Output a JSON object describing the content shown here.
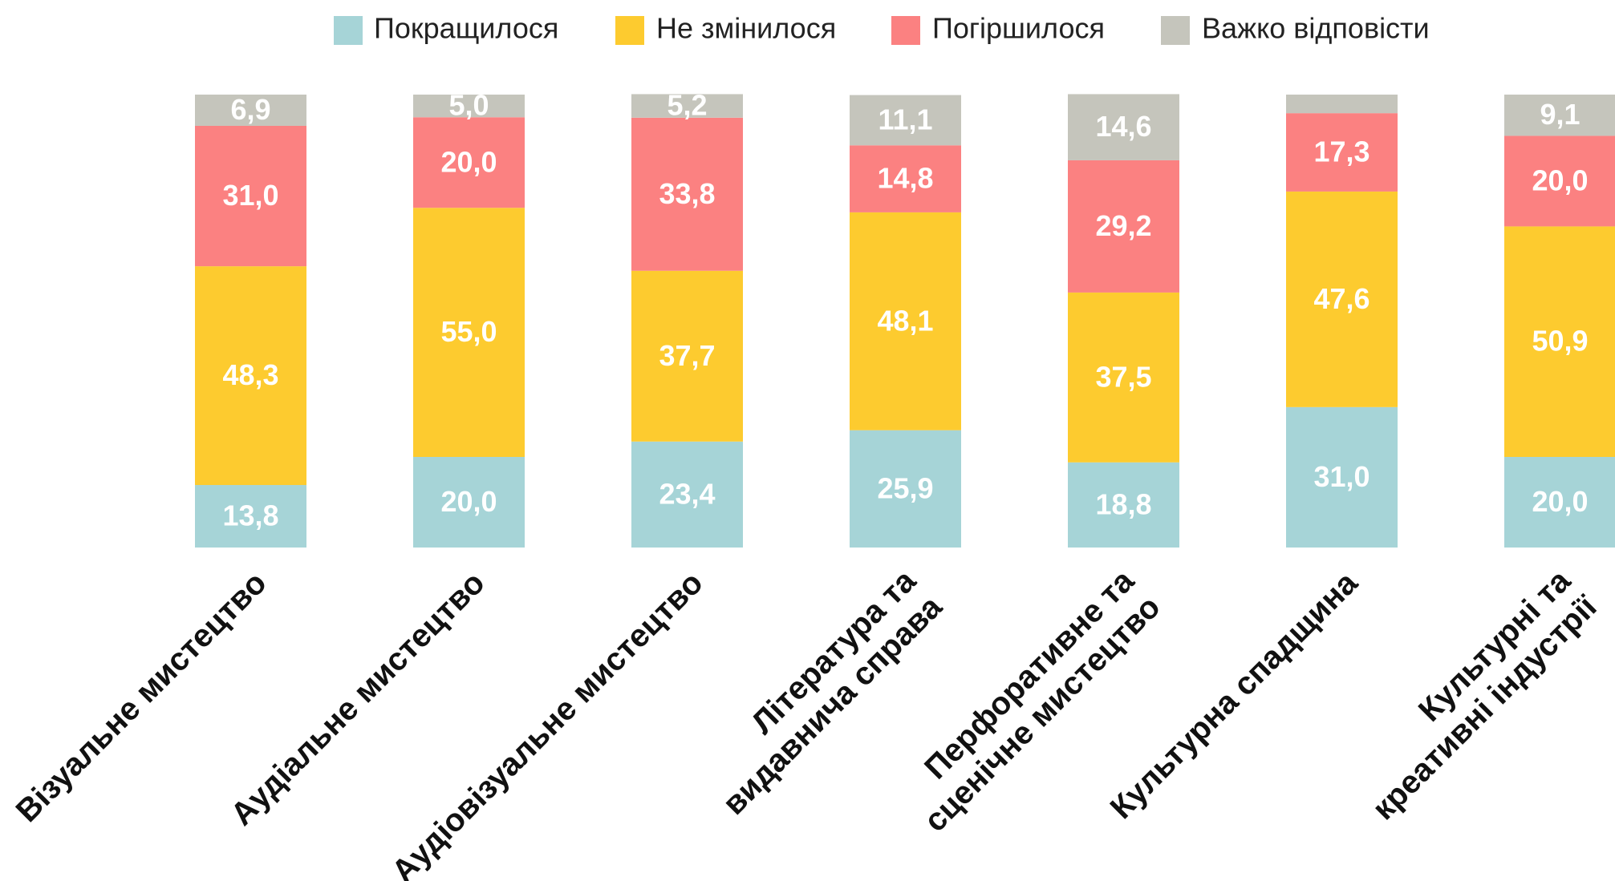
{
  "chart_data": {
    "type": "stacked_bar",
    "categories": [
      "Візуальне мистецтво",
      "Аудіальне мистецтво",
      "Аудіовізуальне мистецтво",
      "Література та\nвидавнича справа",
      "Перфоративне та\nсценічне мистецтво",
      "Культурна спадщина",
      "Культурні та\nкреативні індустрії"
    ],
    "ylim": [
      0,
      100
    ],
    "legend": "top",
    "series": [
      {
        "name": "Покращилося",
        "color": "#a6d4d7",
        "values": [
          13.8,
          20.0,
          23.4,
          25.9,
          18.8,
          31.0,
          20.0
        ],
        "value_labels": [
          "13,8",
          "20,0",
          "23,4",
          "25,9",
          "18,8",
          "31,0",
          "20,0"
        ]
      },
      {
        "name": "Не змінилося",
        "color": "#fdcb2f",
        "values": [
          48.3,
          55.0,
          37.7,
          48.1,
          37.5,
          47.6,
          50.9
        ],
        "value_labels": [
          "48,3",
          "55,0",
          "37,7",
          "48,1",
          "37,5",
          "47,6",
          "50,9"
        ]
      },
      {
        "name": "Погіршилося",
        "color": "#fb8181",
        "values": [
          31.0,
          20.0,
          33.8,
          14.8,
          29.2,
          17.3,
          20.0
        ],
        "value_labels": [
          "31,0",
          "20,0",
          "33,8",
          "14,8",
          "29,2",
          "17,3",
          "20,0"
        ]
      },
      {
        "name": "Важко відповісти",
        "color": "#c5c5bc",
        "values": [
          6.9,
          5.0,
          5.2,
          11.1,
          14.6,
          4.1,
          9.1
        ],
        "value_labels": [
          "6,9",
          "5,0",
          "5,2",
          "11,1",
          "14,6",
          null,
          "9,1"
        ]
      }
    ]
  }
}
